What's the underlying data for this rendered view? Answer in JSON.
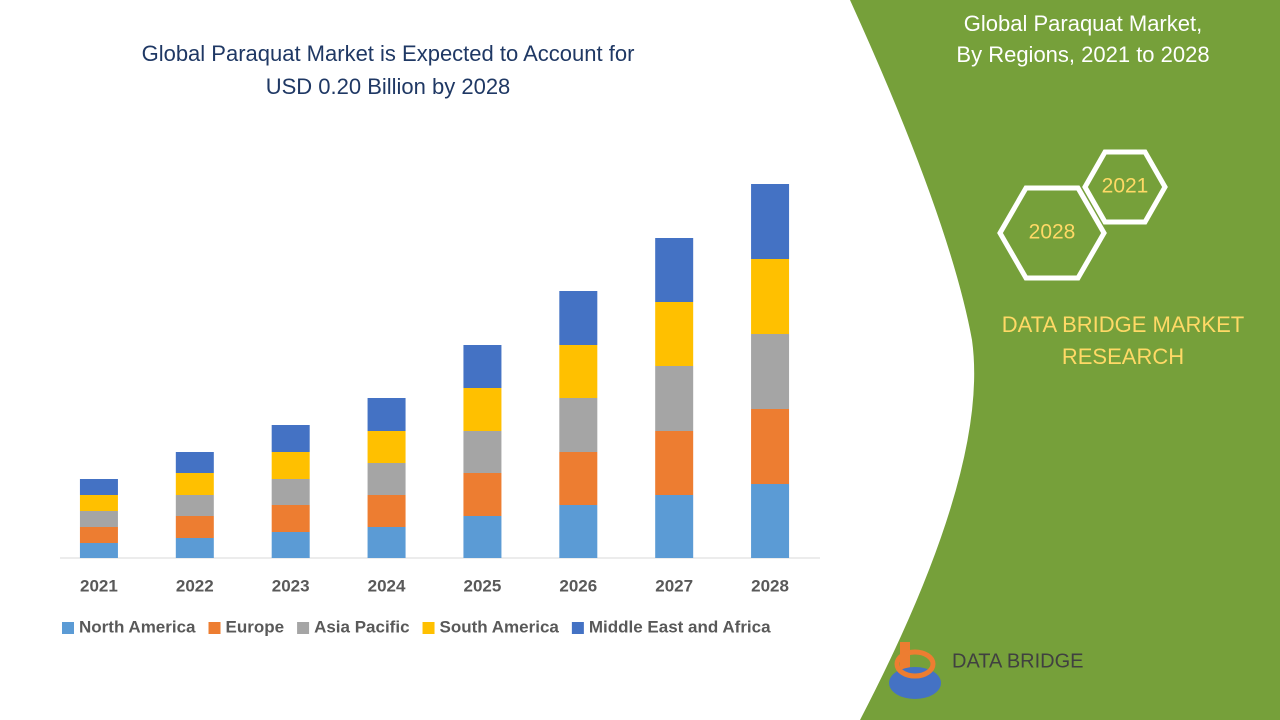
{
  "chart_data": {
    "type": "stacked-bar",
    "title": [
      "Global Paraquat Market is Expected to Account for",
      "USD 0.20 Billion by 2028"
    ],
    "categories": [
      "2021",
      "2022",
      "2023",
      "2024",
      "2025",
      "2026",
      "2027",
      "2028"
    ],
    "series": [
      {
        "name": "North America",
        "color": "#5b9bd5",
        "values": [
          15,
          20,
          26,
          31,
          42,
          53,
          63,
          74
        ]
      },
      {
        "name": "Europe",
        "color": "#ed7d31",
        "values": [
          16,
          22,
          27,
          32,
          43,
          53,
          64,
          75
        ]
      },
      {
        "name": "Asia Pacific",
        "color": "#a5a5a5",
        "values": [
          16,
          21,
          26,
          32,
          42,
          54,
          65,
          75
        ]
      },
      {
        "name": "South America",
        "color": "#ffc000",
        "values": [
          16,
          22,
          27,
          32,
          43,
          53,
          64,
          75
        ]
      },
      {
        "name": "Middle East and Africa",
        "color": "#4472c4",
        "values": [
          16,
          21,
          27,
          33,
          43,
          54,
          64,
          75
        ]
      }
    ],
    "ylim": [
      0,
      400
    ],
    "legend": "bottom"
  },
  "panel": {
    "title": [
      "Global Paraquat Market,",
      "By Regions, 2021 to 2028"
    ],
    "hex_labels": [
      "2021",
      "2028"
    ],
    "brand": [
      "DATA BRIDGE MARKET",
      "RESEARCH"
    ],
    "logo": "DATA BRIDGE"
  }
}
